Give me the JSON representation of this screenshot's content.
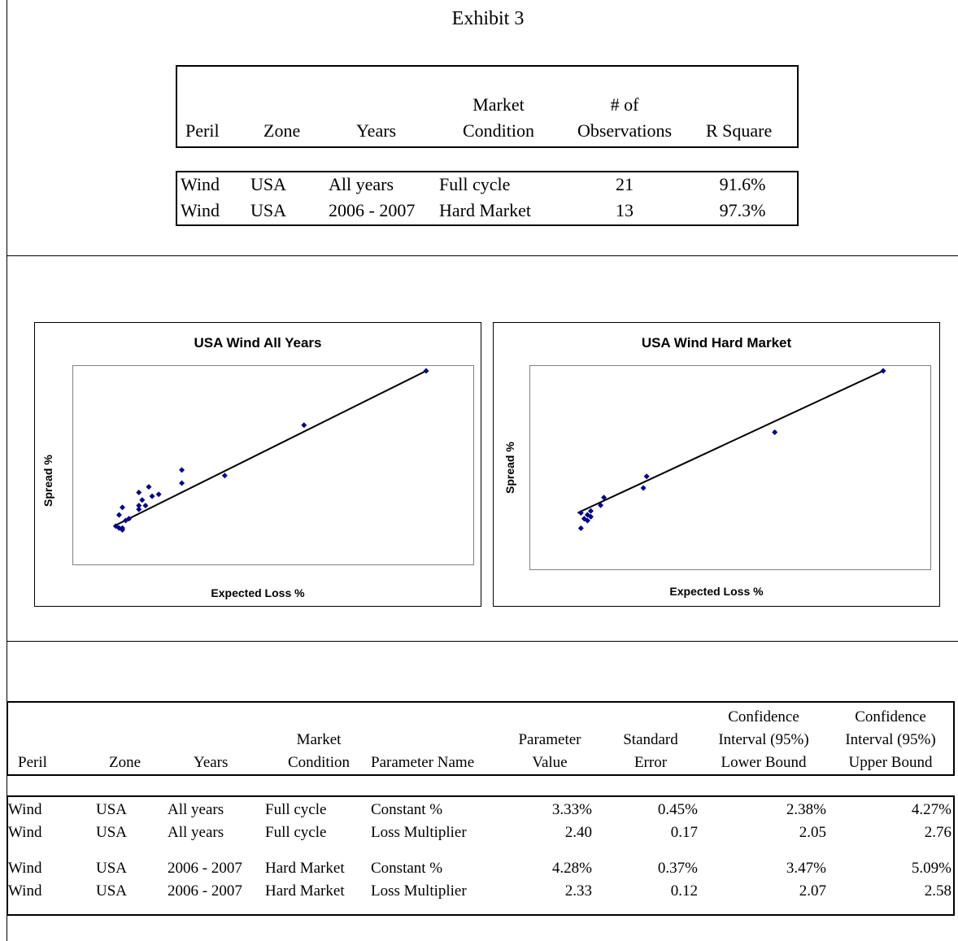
{
  "title": "Exhibit 3",
  "summary": {
    "headers": {
      "peril": "Peril",
      "zone": "Zone",
      "years": "Years",
      "market_line1": "Market",
      "market_line2": "Condition",
      "obs_line1": "# of",
      "obs_line2": "Observations",
      "rsq": "R Square"
    },
    "rows": [
      {
        "peril": "Wind",
        "zone": "USA",
        "years": "All years",
        "market": "Full cycle",
        "obs": "21",
        "rsq": "91.6%"
      },
      {
        "peril": "Wind",
        "zone": "USA",
        "years": "2006 - 2007",
        "market": "Hard Market",
        "obs": "13",
        "rsq": "97.3%"
      }
    ]
  },
  "chart_data": [
    {
      "type": "scatter",
      "title": "USA Wind All Years",
      "xlabel": "Expected Loss %",
      "ylabel": "Spread %",
      "trendline": true,
      "points": [
        [
          0.06,
          0.17
        ],
        [
          0.07,
          0.16
        ],
        [
          0.08,
          0.16
        ],
        [
          0.08,
          0.15
        ],
        [
          0.07,
          0.23
        ],
        [
          0.09,
          0.2
        ],
        [
          0.1,
          0.21
        ],
        [
          0.08,
          0.27
        ],
        [
          0.13,
          0.28
        ],
        [
          0.13,
          0.26
        ],
        [
          0.14,
          0.31
        ],
        [
          0.17,
          0.33
        ],
        [
          0.19,
          0.34
        ],
        [
          0.16,
          0.38
        ],
        [
          0.26,
          0.4
        ],
        [
          0.26,
          0.47
        ],
        [
          0.39,
          0.44
        ],
        [
          0.63,
          0.71
        ],
        [
          1.0,
          1.0
        ],
        [
          0.13,
          0.35
        ],
        [
          0.15,
          0.28
        ]
      ],
      "fit": {
        "x0": 0.06,
        "y0": 0.175,
        "x1": 1.0,
        "y1": 1.0
      }
    },
    {
      "type": "scatter",
      "title": "USA Wind Hard Market",
      "xlabel": "Expected Loss %",
      "ylabel": "Spread %",
      "trendline": true,
      "points": [
        [
          0.08,
          0.18
        ],
        [
          0.09,
          0.23
        ],
        [
          0.1,
          0.25
        ],
        [
          0.1,
          0.22
        ],
        [
          0.11,
          0.27
        ],
        [
          0.11,
          0.24
        ],
        [
          0.08,
          0.26
        ],
        [
          0.14,
          0.3
        ],
        [
          0.15,
          0.34
        ],
        [
          0.27,
          0.39
        ],
        [
          0.28,
          0.45
        ],
        [
          0.67,
          0.68
        ],
        [
          1.0,
          1.0
        ]
      ],
      "fit": {
        "x0": 0.07,
        "y0": 0.26,
        "x1": 1.0,
        "y1": 1.0
      }
    }
  ],
  "params": {
    "headers": {
      "peril": "Peril",
      "zone": "Zone",
      "years": "Years",
      "market_line1": "Market",
      "market_line2": "Condition",
      "param_name": "Parameter Name",
      "param_value_line1": "Parameter",
      "param_value_line2": "Value",
      "stderr_line1": "Standard",
      "stderr_line2": "Error",
      "lower_line1": "Confidence",
      "lower_line2": "Interval (95%)",
      "lower_line3": "Lower Bound",
      "upper_line1": "Confidence",
      "upper_line2": "Interval (95%)",
      "upper_line3": "Upper Bound"
    },
    "rows": [
      {
        "peril": "Wind",
        "zone": "USA",
        "years": "All years",
        "market": "Full cycle",
        "name": "Constant %",
        "value": "3.33%",
        "stderr": "0.45%",
        "lower": "2.38%",
        "upper": "4.27%"
      },
      {
        "peril": "Wind",
        "zone": "USA",
        "years": "All years",
        "market": "Full cycle",
        "name": "Loss Multiplier",
        "value": "2.40",
        "stderr": "0.17",
        "lower": "2.05",
        "upper": "2.76"
      },
      {
        "peril": "Wind",
        "zone": "USA",
        "years": "2006 - 2007",
        "market": "Hard Market",
        "name": "Constant %",
        "value": "4.28%",
        "stderr": "0.37%",
        "lower": "3.47%",
        "upper": "5.09%"
      },
      {
        "peril": "Wind",
        "zone": "USA",
        "years": "2006 - 2007",
        "market": "Hard Market",
        "name": "Loss Multiplier",
        "value": "2.33",
        "stderr": "0.12",
        "lower": "2.07",
        "upper": "2.58"
      }
    ]
  },
  "colors": {
    "marker": "#00008B",
    "line": "#000000",
    "plot_border": "#808080"
  }
}
